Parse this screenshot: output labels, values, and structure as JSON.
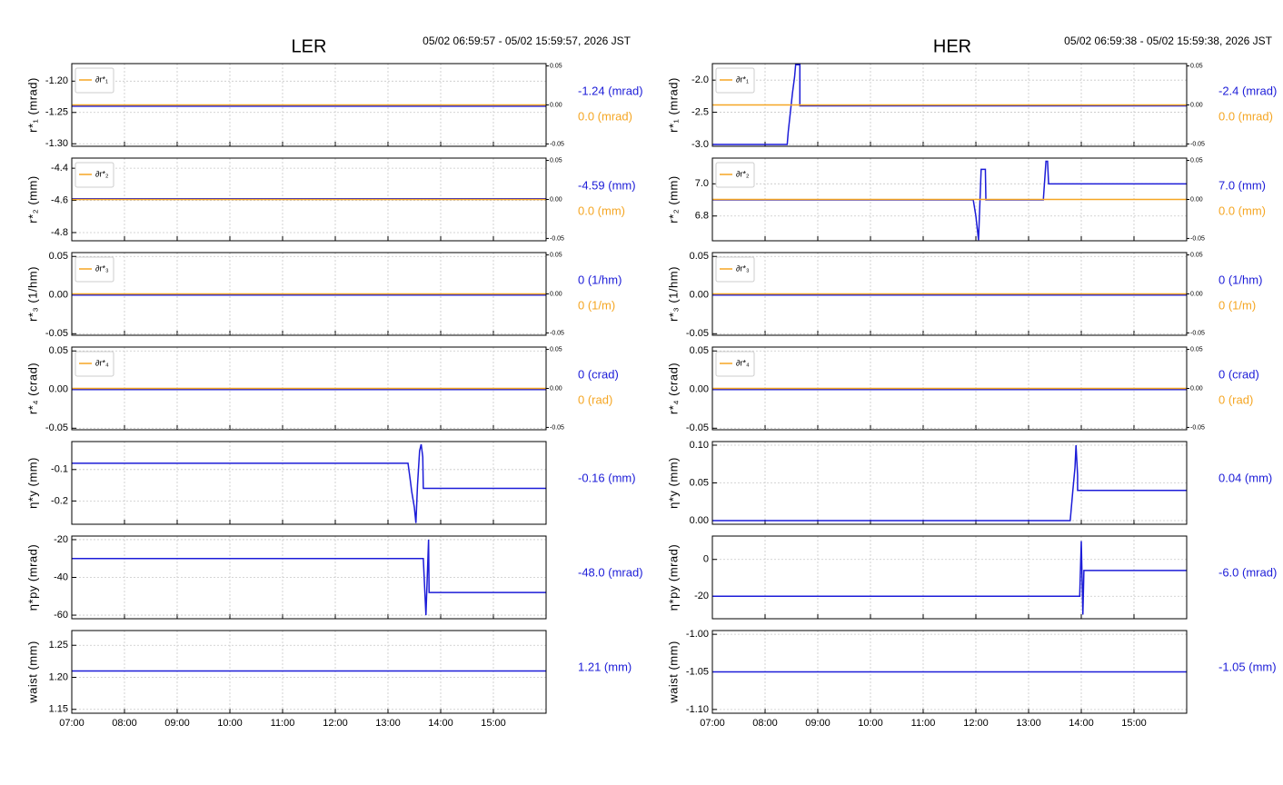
{
  "sections": [
    {
      "title": "LER",
      "time_range": "05/02 06:59:57 - 05/02 15:59:57, 2026 JST",
      "xlim": [
        7,
        16
      ],
      "xticks": [
        {
          "value": 7,
          "label": "07:00"
        },
        {
          "value": 8,
          "label": "08:00"
        },
        {
          "value": 9,
          "label": "09:00"
        },
        {
          "value": 10,
          "label": "10:00"
        },
        {
          "value": 11,
          "label": "11:00"
        },
        {
          "value": 12,
          "label": "12:00"
        },
        {
          "value": 13,
          "label": "13:00"
        },
        {
          "value": 14,
          "label": "14:00"
        },
        {
          "value": 15,
          "label": "15:00"
        }
      ],
      "chart_data": [
        {
          "type": "line",
          "ylabel": "r*₁ (mrad)",
          "ylim": [
            -1.304,
            -1.172
          ],
          "yticks": [
            {
              "value": -1.2,
              "label": "-1.20"
            },
            -1.25,
            {
              "value": -1.3,
              "label": "-1.30"
            }
          ],
          "y2lim": [
            -0.053,
            0.053
          ],
          "y2ticks": [
            0.05,
            {
              "value": 0,
              "label": "0.00"
            },
            -0.05
          ],
          "series": [
            {
              "color": "#1c1cd8",
              "x": [
                7,
                16
              ],
              "values": [
                -1.24,
                -1.24
              ]
            },
            {
              "name": "∂r*₁",
              "color": "#f5a623",
              "axis": "y2",
              "x": [
                7,
                16
              ],
              "values": [
                0,
                0
              ]
            }
          ],
          "annotations": [
            {
              "text": "-1.24 (mrad)",
              "color": "#1c1cd8"
            },
            {
              "text": "0.0 (mrad)",
              "color": "#f5a623"
            }
          ]
        },
        {
          "type": "line",
          "ylabel": "r*₂ (mm)",
          "ylim": [
            -4.851,
            -4.337
          ],
          "yticks": [
            -4.4,
            -4.6,
            -4.8
          ],
          "y2lim": [
            -0.053,
            0.053
          ],
          "y2ticks": [
            0.05,
            {
              "value": 0,
              "label": "0.00"
            },
            -0.05
          ],
          "series": [
            {
              "color": "#1c1cd8",
              "x": [
                7,
                16
              ],
              "values": [
                -4.59,
                -4.59
              ]
            },
            {
              "name": "∂r*₂",
              "color": "#f5a623",
              "axis": "y2",
              "x": [
                7,
                16
              ],
              "values": [
                0,
                0
              ]
            }
          ],
          "annotations": [
            {
              "text": "-4.59 (mm)",
              "color": "#1c1cd8"
            },
            {
              "text": "0.0 (mm)",
              "color": "#f5a623"
            }
          ]
        },
        {
          "type": "line",
          "ylabel": "r*₃ (1/hm)",
          "ylim": [
            -0.052,
            0.055
          ],
          "yticks": [
            0.05,
            {
              "value": 0,
              "label": "0.00"
            },
            -0.05
          ],
          "y2lim": [
            -0.053,
            0.053
          ],
          "y2ticks": [
            0.05,
            {
              "value": 0,
              "label": "0.00"
            },
            -0.05
          ],
          "series": [
            {
              "color": "#1c1cd8",
              "x": [
                7,
                16
              ],
              "values": [
                0,
                0
              ]
            },
            {
              "name": "∂r*₃",
              "color": "#f5a623",
              "axis": "y2",
              "x": [
                7,
                16
              ],
              "values": [
                0,
                0
              ]
            }
          ],
          "annotations": [
            {
              "text": "0 (1/hm)",
              "color": "#1c1cd8"
            },
            {
              "text": "0 (1/m)",
              "color": "#f5a623"
            }
          ]
        },
        {
          "type": "line",
          "ylabel": "r*₄ (crad)",
          "ylim": [
            -0.052,
            0.055
          ],
          "yticks": [
            0.05,
            {
              "value": 0,
              "label": "0.00"
            },
            -0.05
          ],
          "y2lim": [
            -0.053,
            0.053
          ],
          "y2ticks": [
            0.05,
            {
              "value": 0,
              "label": "0.00"
            },
            -0.05
          ],
          "series": [
            {
              "color": "#1c1cd8",
              "x": [
                7,
                16
              ],
              "values": [
                0,
                0
              ]
            },
            {
              "name": "∂r*₄",
              "color": "#f5a623",
              "axis": "y2",
              "x": [
                7,
                16
              ],
              "values": [
                0,
                0
              ]
            }
          ],
          "annotations": [
            {
              "text": "0 (crad)",
              "color": "#1c1cd8"
            },
            {
              "text": "0 (rad)",
              "color": "#f5a623"
            }
          ]
        },
        {
          "type": "line",
          "ylabel": "η*y (mm)",
          "ylim": [
            -0.274,
            -0.011
          ],
          "yticks": [
            -0.1,
            -0.2
          ],
          "series": [
            {
              "color": "#1c1cd8",
              "x": [
                7,
                13.38,
                13.42,
                13.45,
                13.5,
                13.53,
                13.56,
                13.6,
                13.63,
                13.66,
                13.67,
                16
              ],
              "values": [
                -0.08,
                -0.08,
                -0.13,
                -0.17,
                -0.22,
                -0.27,
                -0.15,
                -0.04,
                -0.02,
                -0.06,
                -0.16,
                -0.16
              ]
            }
          ],
          "annotations": [
            {
              "text": "-0.16 (mm)",
              "color": "#1c1cd8"
            }
          ]
        },
        {
          "type": "line",
          "ylabel": "η*py (mrad)",
          "ylim": [
            -61.9,
            -18.1
          ],
          "yticks": [
            -20,
            -40,
            -60
          ],
          "series": [
            {
              "color": "#1c1cd8",
              "x": [
                7,
                13.67,
                13.72,
                13.77,
                13.78,
                16
              ],
              "values": [
                -30,
                -30,
                -60,
                -20,
                -48,
                -48
              ]
            }
          ],
          "annotations": [
            {
              "text": "-48.0 (mrad)",
              "color": "#1c1cd8"
            }
          ]
        },
        {
          "type": "line",
          "ylabel": "waist (mm)",
          "ylim": [
            1.144,
            1.273
          ],
          "yticks": [
            1.25,
            {
              "value": 1.2,
              "label": "1.20"
            },
            1.15
          ],
          "series": [
            {
              "color": "#1c1cd8",
              "x": [
                7,
                16
              ],
              "values": [
                1.21,
                1.21
              ]
            }
          ],
          "annotations": [
            {
              "text": "1.21 (mm)",
              "color": "#1c1cd8"
            }
          ]
        }
      ]
    },
    {
      "title": "HER",
      "time_range": "05/02 06:59:38 - 05/02 15:59:38, 2026 JST",
      "xlim": [
        7,
        16
      ],
      "xticks": [
        {
          "value": 7,
          "label": "07:00"
        },
        {
          "value": 8,
          "label": "08:00"
        },
        {
          "value": 9,
          "label": "09:00"
        },
        {
          "value": 10,
          "label": "10:00"
        },
        {
          "value": 11,
          "label": "11:00"
        },
        {
          "value": 12,
          "label": "12:00"
        },
        {
          "value": 13,
          "label": "13:00"
        },
        {
          "value": 14,
          "label": "14:00"
        },
        {
          "value": 15,
          "label": "15:00"
        }
      ],
      "chart_data": [
        {
          "type": "line",
          "ylabel": "r*₁ (mrad)",
          "ylim": [
            -3.029,
            -1.743
          ],
          "yticks": [
            {
              "value": -2,
              "label": "-2.0"
            },
            -2.5,
            {
              "value": -3,
              "label": "-3.0"
            }
          ],
          "y2lim": [
            -0.053,
            0.053
          ],
          "y2ticks": [
            0.05,
            {
              "value": 0,
              "label": "0.00"
            },
            -0.05
          ],
          "series": [
            {
              "color": "#1c1cd8",
              "x": [
                7,
                8.42,
                8.44,
                8.48,
                8.52,
                8.56,
                8.58,
                8.66,
                8.66,
                16
              ],
              "values": [
                -3,
                -3,
                -2.8,
                -2.5,
                -2.2,
                -1.95,
                -1.76,
                -1.76,
                -2.4,
                -2.4
              ]
            },
            {
              "name": "∂r*₁",
              "color": "#f5a623",
              "axis": "y2",
              "x": [
                7,
                16
              ],
              "values": [
                0,
                0
              ]
            }
          ],
          "annotations": [
            {
              "text": "-2.4 (mrad)",
              "color": "#1c1cd8"
            },
            {
              "text": "0.0 (mrad)",
              "color": "#f5a623"
            }
          ]
        },
        {
          "type": "line",
          "ylabel": "r*₂ (mm)",
          "ylim": [
            6.646,
            7.16
          ],
          "yticks": [
            {
              "value": 7,
              "label": "7.0"
            },
            6.8
          ],
          "y2lim": [
            -0.053,
            0.053
          ],
          "y2ticks": [
            0.05,
            {
              "value": 0,
              "label": "0.00"
            },
            -0.05
          ],
          "series": [
            {
              "color": "#1c1cd8",
              "x": [
                7,
                11.95,
                12.0,
                12.05,
                12.1,
                12.18,
                12.19,
                13.28,
                13.33,
                13.36,
                13.38,
                16
              ],
              "values": [
                6.9,
                6.9,
                6.8,
                6.65,
                7.09,
                7.09,
                6.9,
                6.9,
                7.14,
                7.14,
                7.0,
                7.0
              ]
            },
            {
              "name": "∂r*₂",
              "color": "#f5a623",
              "axis": "y2",
              "x": [
                7,
                16
              ],
              "values": [
                0,
                0
              ]
            }
          ],
          "annotations": [
            {
              "text": "7.0 (mm)",
              "color": "#1c1cd8"
            },
            {
              "text": "0.0 (mm)",
              "color": "#f5a623"
            }
          ]
        },
        {
          "type": "line",
          "ylabel": "r*₃ (1/hm)",
          "ylim": [
            -0.052,
            0.055
          ],
          "yticks": [
            0.05,
            {
              "value": 0,
              "label": "0.00"
            },
            -0.05
          ],
          "y2lim": [
            -0.053,
            0.053
          ],
          "y2ticks": [
            0.05,
            {
              "value": 0,
              "label": "0.00"
            },
            -0.05
          ],
          "series": [
            {
              "color": "#1c1cd8",
              "x": [
                7,
                16
              ],
              "values": [
                0,
                0
              ]
            },
            {
              "name": "∂r*₃",
              "color": "#f5a623",
              "axis": "y2",
              "x": [
                7,
                16
              ],
              "values": [
                0,
                0
              ]
            }
          ],
          "annotations": [
            {
              "text": "0 (1/hm)",
              "color": "#1c1cd8"
            },
            {
              "text": "0 (1/m)",
              "color": "#f5a623"
            }
          ]
        },
        {
          "type": "line",
          "ylabel": "r*₄ (crad)",
          "ylim": [
            -0.052,
            0.055
          ],
          "yticks": [
            0.05,
            {
              "value": 0,
              "label": "0.00"
            },
            -0.05
          ],
          "y2lim": [
            -0.053,
            0.053
          ],
          "y2ticks": [
            0.05,
            {
              "value": 0,
              "label": "0.00"
            },
            -0.05
          ],
          "series": [
            {
              "color": "#1c1cd8",
              "x": [
                7,
                16
              ],
              "values": [
                0,
                0
              ]
            },
            {
              "name": "∂r*₄",
              "color": "#f5a623",
              "axis": "y2",
              "x": [
                7,
                16
              ],
              "values": [
                0,
                0
              ]
            }
          ],
          "annotations": [
            {
              "text": "0 (crad)",
              "color": "#1c1cd8"
            },
            {
              "text": "0 (rad)",
              "color": "#f5a623"
            }
          ]
        },
        {
          "type": "line",
          "ylabel": "η*y (mm)",
          "ylim": [
            -0.0048,
            0.1048
          ],
          "yticks": [
            {
              "value": 0.1,
              "label": "0.10"
            },
            0.05,
            {
              "value": 0,
              "label": "0.00"
            }
          ],
          "series": [
            {
              "color": "#1c1cd8",
              "x": [
                7,
                13.79,
                13.84,
                13.88,
                13.9,
                13.93,
                13.93,
                16
              ],
              "values": [
                0,
                0,
                0.04,
                0.07,
                0.1,
                0.06,
                0.04,
                0.04
              ]
            }
          ],
          "annotations": [
            {
              "text": "0.04 (mm)",
              "color": "#1c1cd8"
            }
          ]
        },
        {
          "type": "line",
          "ylabel": "η*py (mrad)",
          "ylim": [
            -32.2,
            12.7
          ],
          "yticks": [
            0,
            -20
          ],
          "series": [
            {
              "color": "#1c1cd8",
              "x": [
                7,
                13.97,
                14.0,
                14.03,
                14.05,
                16
              ],
              "values": [
                -20,
                -20,
                10,
                -30,
                -6,
                -6
              ]
            }
          ],
          "annotations": [
            {
              "text": "-6.0 (mrad)",
              "color": "#1c1cd8"
            }
          ]
        },
        {
          "type": "line",
          "ylabel": "waist (mm)",
          "ylim": [
            -1.105,
            -0.995
          ],
          "yticks": [
            {
              "value": -1,
              "label": "-1.00"
            },
            -1.05,
            {
              "value": -1.1,
              "label": "-1.10"
            }
          ],
          "series": [
            {
              "color": "#1c1cd8",
              "x": [
                7,
                16
              ],
              "values": [
                -1.05,
                -1.05
              ]
            }
          ],
          "annotations": [
            {
              "text": "-1.05 (mm)",
              "color": "#1c1cd8"
            }
          ]
        }
      ]
    }
  ]
}
